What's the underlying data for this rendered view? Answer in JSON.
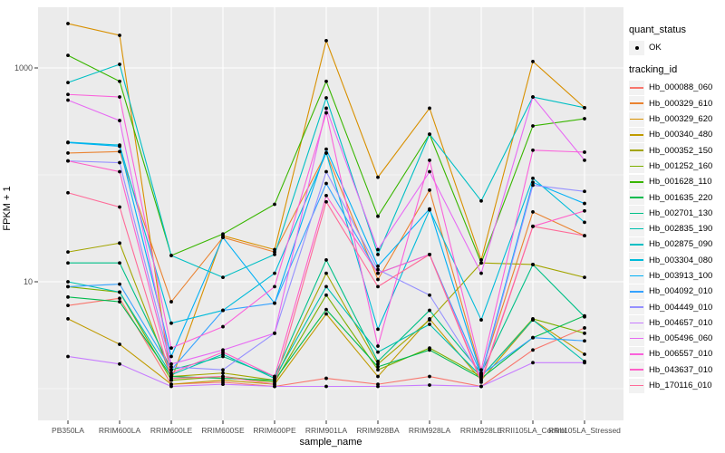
{
  "chart_data": {
    "type": "line",
    "title": "",
    "xlabel": "sample_name",
    "ylabel": "FPKM + 1",
    "y_scale": "log10",
    "grid": true,
    "legend_position": "right",
    "x_categories": [
      "PB350LA",
      "RRIM600LA",
      "RRIM600LE",
      "RRIM600SE",
      "RRIM600PE",
      "RRIM901LA",
      "RRIM928BA",
      "RRIM928LA",
      "RRIM928LE",
      "RRII105LA_Control",
      "RRII105LA_Stressed"
    ],
    "y_ticks": [
      {
        "value": 10,
        "label": "10"
      },
      {
        "value": 1000,
        "label": "1000"
      }
    ],
    "y_minor": [
      1,
      100
    ],
    "ylim": [
      0.9,
      3500
    ],
    "legend_quant": {
      "title": "quant_status",
      "items": [
        {
          "label": "OK",
          "symbol": "point"
        }
      ]
    },
    "legend_tracking": {
      "title": "tracking_id"
    },
    "series": [
      {
        "name": "Hb_000088_060",
        "color": "#F8766D",
        "quant_status": "OK",
        "values": [
          6,
          7,
          1.1,
          1.15,
          1.05,
          1.25,
          1.1,
          1.3,
          1.05,
          2.3,
          3.7
        ]
      },
      {
        "name": "Hb_000329_610",
        "color": "#EA8331",
        "quant_status": "OK",
        "values": [
          160,
          165,
          6.5,
          26,
          19,
          160,
          10.5,
          72,
          1.4,
          45,
          27
        ]
      },
      {
        "name": "Hb_000329_620",
        "color": "#D89000",
        "quant_status": "OK",
        "values": [
          2600,
          2020,
          1.2,
          27,
          20,
          1800,
          95,
          420,
          16,
          1150,
          425
        ]
      },
      {
        "name": "Hb_000340_480",
        "color": "#C09B00",
        "quant_status": "OK",
        "values": [
          4.5,
          2.6,
          1.1,
          1.2,
          1.1,
          5,
          1.3,
          4.5,
          1.2,
          4.4,
          2.1
        ]
      },
      {
        "name": "Hb_000352_150",
        "color": "#A3A500",
        "quant_status": "OK",
        "values": [
          19,
          23,
          1.3,
          1.4,
          1.2,
          12,
          1.7,
          4.4,
          15,
          14.5,
          11
        ]
      },
      {
        "name": "Hb_001252_160",
        "color": "#7CAE00",
        "quant_status": "OK",
        "values": [
          9,
          8,
          1.2,
          1.3,
          1.15,
          7.5,
          1.5,
          2.4,
          1.3,
          4.5,
          3.3
        ]
      },
      {
        "name": "Hb_001628_110",
        "color": "#39B600",
        "quant_status": "OK",
        "values": [
          1310,
          750,
          17.6,
          28,
          53,
          750,
          41,
          240,
          15,
          287,
          335
        ]
      },
      {
        "name": "Hb_001635_220",
        "color": "#00BB4E",
        "quant_status": "OK",
        "values": [
          7.2,
          6.5,
          1.3,
          1.25,
          1.2,
          5.5,
          1.6,
          2.3,
          1.25,
          3,
          4.8
        ]
      },
      {
        "name": "Hb_002701_130",
        "color": "#00C087",
        "quant_status": "OK",
        "values": [
          15,
          15,
          1.5,
          2,
          1.3,
          16,
          1.8,
          5.4,
          1.4,
          14.5,
          4.7
        ]
      },
      {
        "name": "Hb_002835_190",
        "color": "#00C0AF",
        "quant_status": "OK",
        "values": [
          10,
          8,
          1.35,
          2.1,
          1.25,
          9,
          2.2,
          4,
          1.3,
          4.4,
          1.8
        ]
      },
      {
        "name": "Hb_002875_090",
        "color": "#00BFC4",
        "quant_status": "OK",
        "values": [
          730,
          1080,
          17.6,
          11,
          18,
          525,
          18,
          240,
          57,
          535,
          425
        ]
      },
      {
        "name": "Hb_003304_080",
        "color": "#00BBDA",
        "quant_status": "OK",
        "values": [
          202,
          190,
          4.1,
          5.4,
          12,
          160,
          3.6,
          47,
          4.4,
          93,
          36
        ]
      },
      {
        "name": "Hb_003913_100",
        "color": "#00B0F6",
        "quant_status": "OK",
        "values": [
          200,
          185,
          2,
          26,
          6.3,
          174,
          14,
          48,
          1.35,
          85,
          54
        ]
      },
      {
        "name": "Hb_004092_010",
        "color": "#35A2FF",
        "quant_status": "OK",
        "values": [
          9,
          9.5,
          1.5,
          5.4,
          6.3,
          83,
          12,
          18,
          1.35,
          3,
          2.8
        ]
      },
      {
        "name": "Hb_004449_010",
        "color": "#9590FF",
        "quant_status": "OK",
        "values": [
          135,
          130,
          1.6,
          1.5,
          3.3,
          107,
          13,
          7.5,
          1.3,
          80,
          70
        ]
      },
      {
        "name": "Hb_004657_010",
        "color": "#C77CFF",
        "quant_status": "OK",
        "values": [
          2,
          1.7,
          1.05,
          1.1,
          1.05,
          1.05,
          1.05,
          1.08,
          1.05,
          1.75,
          1.75
        ]
      },
      {
        "name": "Hb_005496_060",
        "color": "#E76BF3",
        "quant_status": "OK",
        "values": [
          500,
          322,
          1.7,
          2.3,
          3.3,
          420,
          20,
          107,
          12,
          535,
          137
        ]
      },
      {
        "name": "Hb_006557_010",
        "color": "#FA62DB",
        "quant_status": "OK",
        "values": [
          565,
          535,
          2.4,
          3.8,
          9,
          380,
          2.5,
          137,
          1.5,
          170,
          163
        ]
      },
      {
        "name": "Hb_043637_010",
        "color": "#FF61C9",
        "quant_status": "OK",
        "values": [
          135,
          107,
          1.4,
          2.2,
          1.3,
          64,
          12,
          18,
          1.2,
          33,
          46
        ]
      },
      {
        "name": "Hb_170116_010",
        "color": "#FF6A98",
        "quant_status": "OK",
        "values": [
          68,
          50,
          1.25,
          1.3,
          1.1,
          56,
          9,
          18,
          1.15,
          33,
          27
        ]
      }
    ]
  },
  "colors": {
    "panel_bg": "#EBEBEB",
    "grid": "#FFFFFF",
    "point": "#000000",
    "axis_text": "#4D4D4D",
    "tick_mark": "#333333",
    "legend_key_bg": "#F2F2F2",
    "legend_text": "#000000"
  }
}
